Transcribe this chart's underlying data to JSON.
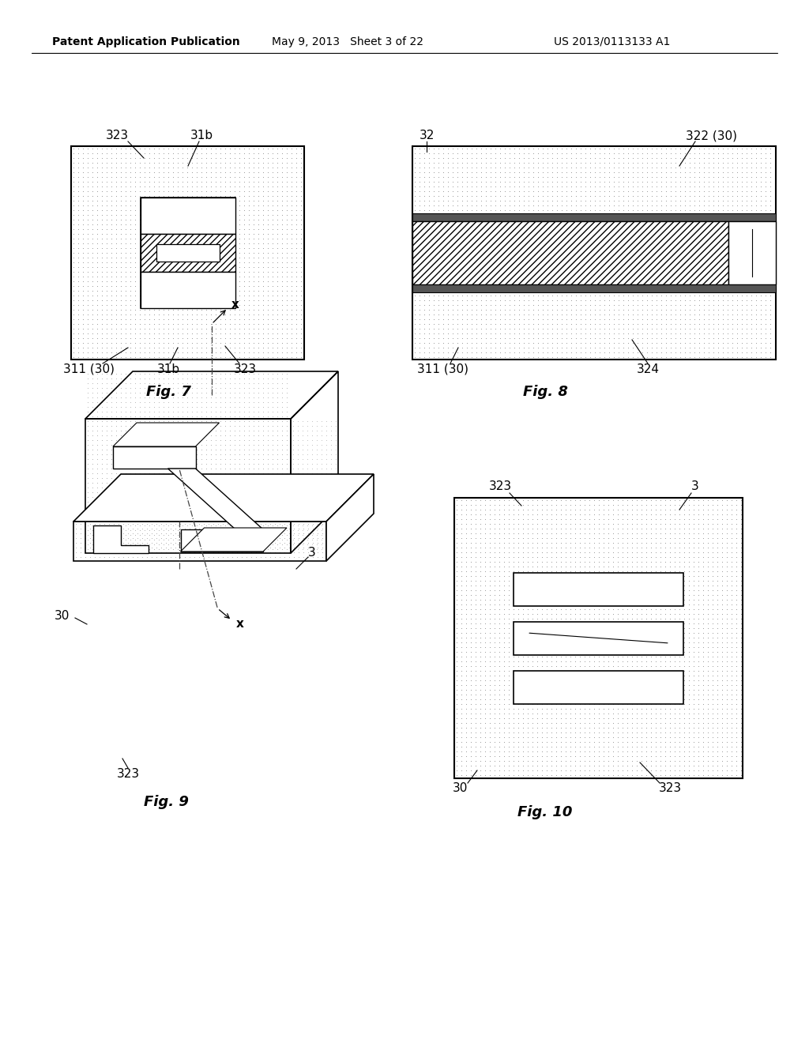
{
  "bg_color": "#ffffff",
  "header_text": "Patent Application Publication",
  "header_date": "May 9, 2013   Sheet 3 of 22",
  "header_patent": "US 2013/0113133 A1",
  "fig7_title": "Fig. 7",
  "fig8_title": "Fig. 8",
  "fig9_title": "Fig. 9",
  "fig10_title": "Fig. 10",
  "stipple_color": "#aaaaaa",
  "stipple_bg": "#e8e8e8",
  "hatch_pattern": "////",
  "white": "#ffffff",
  "black": "#000000",
  "dark_gray": "#333333",
  "mid_gray": "#888888"
}
